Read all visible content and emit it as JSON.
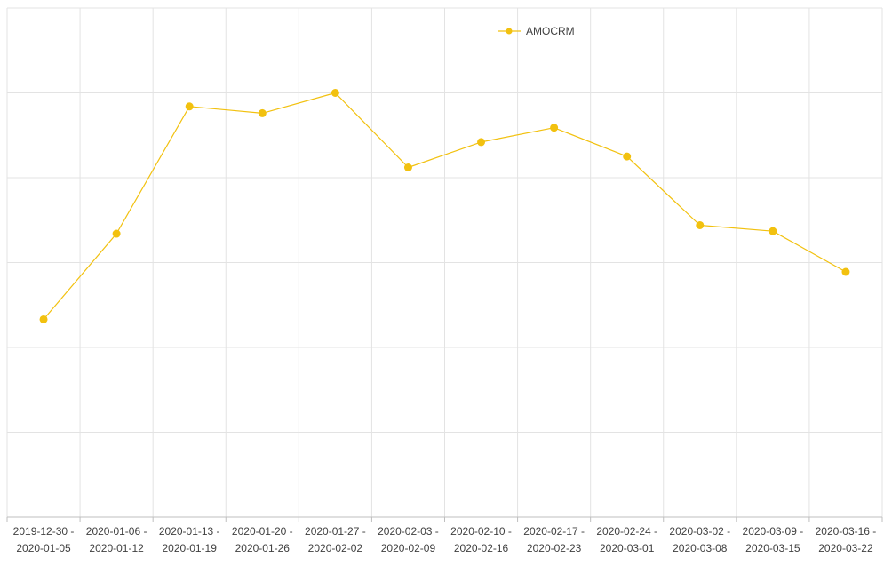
{
  "chart_data": {
    "type": "line",
    "title": "",
    "xlabel": "",
    "ylabel": "",
    "categories": [
      [
        "2019-12-30 -",
        "2020-01-05"
      ],
      [
        "2020-01-06 -",
        "2020-01-12"
      ],
      [
        "2020-01-13 -",
        "2020-01-19"
      ],
      [
        "2020-01-20 -",
        "2020-01-26"
      ],
      [
        "2020-01-27 -",
        "2020-02-02"
      ],
      [
        "2020-02-03 -",
        "2020-02-09"
      ],
      [
        "2020-02-10 -",
        "2020-02-16"
      ],
      [
        "2020-02-17 -",
        "2020-02-23"
      ],
      [
        "2020-02-24 -",
        "2020-03-01"
      ],
      [
        "2020-03-02 -",
        "2020-03-08"
      ],
      [
        "2020-03-09 -",
        "2020-03-15"
      ],
      [
        "2020-03-16 -",
        "2020-03-22"
      ]
    ],
    "ylim": [
      0,
      6
    ],
    "y_ticks_visible": false,
    "grid": true,
    "legend_position": "top-center",
    "series": [
      {
        "name": "AMOCRM",
        "color": "#F2C10F",
        "values": [
          2.33,
          3.34,
          4.84,
          4.76,
          5.0,
          4.12,
          4.42,
          4.59,
          4.25,
          3.44,
          3.37,
          2.89
        ]
      }
    ]
  }
}
